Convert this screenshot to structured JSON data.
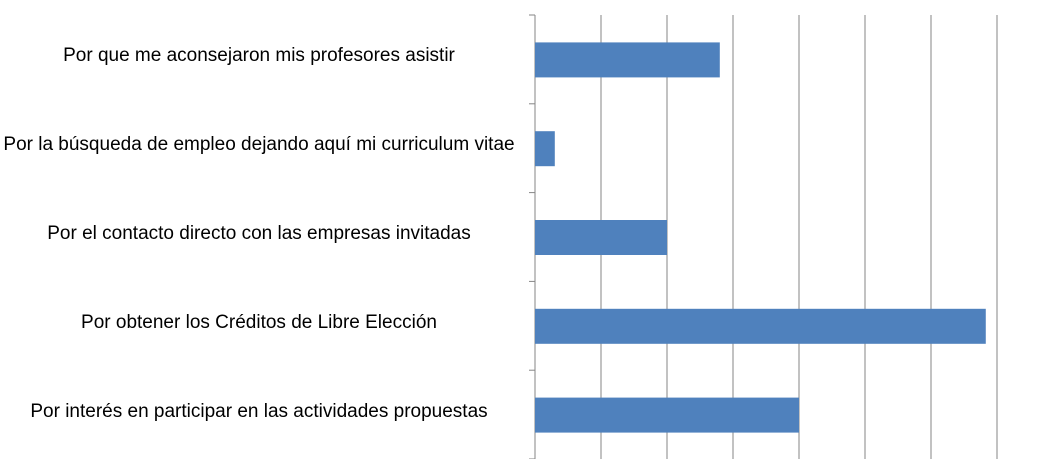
{
  "chart_data": {
    "type": "barh",
    "categories": [
      "Por que me aconsejaron mis profesores asistir",
      "Por la búsqueda de empleo dejando aquí mi curriculum vitae",
      "Por el contacto directo con las empresas invitadas",
      "Por obtener los Créditos de Libre Elección",
      "Por interés en participar en las actividades propuestas"
    ],
    "values": [
      2.8,
      0.3,
      2.0,
      6.83,
      4.0
    ],
    "color": "#4f81bd",
    "xlim": [
      0,
      7
    ],
    "xticks": [
      0,
      1,
      2,
      3,
      4,
      5,
      6,
      7
    ],
    "grid": true
  }
}
